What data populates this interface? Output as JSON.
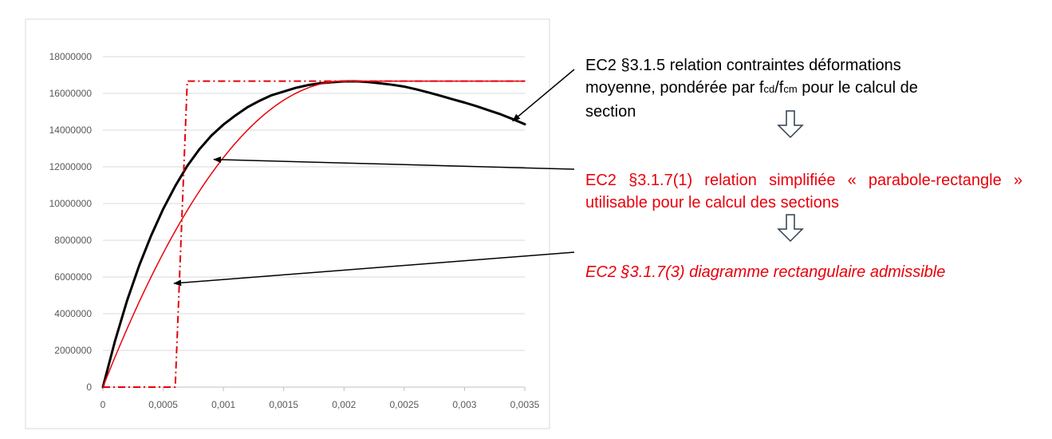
{
  "chart_data": {
    "type": "line",
    "x": [
      0,
      0.0005,
      0.001,
      0.0015,
      0.002,
      0.0025,
      0.003,
      0.0035
    ],
    "x_tick_labels": [
      "0",
      "0,0005",
      "0,001",
      "0,0015",
      "0,002",
      "0,0025",
      "0,003",
      "0,0035"
    ],
    "y_tick_labels": [
      "0",
      "2000000",
      "4000000",
      "6000000",
      "8000000",
      "10000000",
      "12000000",
      "14000000",
      "16000000",
      "18000000"
    ],
    "xlim": [
      0,
      0.0035
    ],
    "ylim": [
      0,
      18000000
    ],
    "grid": "horizontal",
    "series": [
      {
        "key": "ec2_3_1_5",
        "color": "#000000",
        "style": "solid",
        "points": [
          [
            0,
            0
          ],
          [
            0.0001,
            2500000
          ],
          [
            0.0002,
            4700000
          ],
          [
            0.0003,
            6600000
          ],
          [
            0.0004,
            8250000
          ],
          [
            0.0005,
            9700000
          ],
          [
            0.0006,
            10950000
          ],
          [
            0.0007,
            12050000
          ],
          [
            0.0008,
            12950000
          ],
          [
            0.0009,
            13700000
          ],
          [
            0.001,
            14300000
          ],
          [
            0.0011,
            14800000
          ],
          [
            0.0012,
            15250000
          ],
          [
            0.0013,
            15600000
          ],
          [
            0.0014,
            15900000
          ],
          [
            0.0015,
            16100000
          ],
          [
            0.0016,
            16300000
          ],
          [
            0.0017,
            16450000
          ],
          [
            0.0018,
            16550000
          ],
          [
            0.0019,
            16610000
          ],
          [
            0.002,
            16650000
          ],
          [
            0.0021,
            16660000
          ],
          [
            0.0022,
            16620000
          ],
          [
            0.0023,
            16550000
          ],
          [
            0.0024,
            16470000
          ],
          [
            0.0025,
            16370000
          ],
          [
            0.0026,
            16220000
          ],
          [
            0.0027,
            16050000
          ],
          [
            0.0028,
            15870000
          ],
          [
            0.0029,
            15680000
          ],
          [
            0.003,
            15500000
          ],
          [
            0.0031,
            15300000
          ],
          [
            0.0032,
            15080000
          ],
          [
            0.0033,
            14860000
          ],
          [
            0.0034,
            14600000
          ],
          [
            0.0035,
            14320000
          ]
        ]
      },
      {
        "key": "parabole_rectangle",
        "color": "#e8000b",
        "style": "solid",
        "points": [
          [
            0,
            0
          ],
          [
            0.0002,
            3180000
          ],
          [
            0.0004,
            6130000
          ],
          [
            0.0006,
            8660000
          ],
          [
            0.0008,
            10930000
          ],
          [
            0.001,
            12810000
          ],
          [
            0.0012,
            14330000
          ],
          [
            0.0014,
            15470000
          ],
          [
            0.0016,
            16240000
          ],
          [
            0.0018,
            16620000
          ],
          [
            0.002,
            16670000
          ],
          [
            0.0035,
            16670000
          ]
        ]
      },
      {
        "key": "rectangulaire",
        "color": "#e8000b",
        "style": "dashdot",
        "points": [
          [
            0,
            0
          ],
          [
            0.0006,
            0
          ],
          [
            0.0007,
            16670000
          ],
          [
            0.0035,
            16670000
          ]
        ]
      }
    ],
    "annotations": [
      {
        "text_lines": [
          "EC2 §3.1.5 relation contraintes déformations",
          "moyenne, pondérée par f",
          "cd",
          "/f",
          "cm",
          " pour le calcul de",
          "section"
        ],
        "color": "#000000",
        "arrow_to": [
          0.0034,
          14500000
        ]
      },
      {
        "text_lines": [
          "EC2 §3.1.7(1) relation simplifiée « parabole-rectangle » utilisable pour le calcul des sections"
        ],
        "color": "#e8000b",
        "arrow_to": [
          0.00092,
          12400000
        ]
      },
      {
        "text_lines": [
          "EC2 §3.1.7(3) diagramme rectangulaire admissible"
        ],
        "color": "#e8000b",
        "arrow_to": [
          0.00059,
          5650000
        ]
      }
    ]
  },
  "notes": {
    "note1_line1": "EC2 §3.1.5 relation contraintes déformations",
    "note1_line2a": "moyenne, pondérée par f",
    "note1_sub1": "cd",
    "note1_slash": "/f",
    "note1_sub2": "cm",
    "note1_line2b": " pour le calcul de",
    "note1_line3": "section",
    "note2": "EC2 §3.1.7(1) relation simplifiée « parabole-rectangle » utilisable pour le calcul des sections",
    "note3": "EC2 §3.1.7(3) diagramme rectangulaire admissible"
  },
  "colors": {
    "frame": "#d9d9d9",
    "grid": "#d9d9d9",
    "axis": "#bfbfbf",
    "black_curve": "#000000",
    "red": "#e8000b",
    "flow_arrow": "#2f3e4f"
  },
  "icons": [
    "down-flow-arrow-icon",
    "down-flow-arrow-icon"
  ]
}
